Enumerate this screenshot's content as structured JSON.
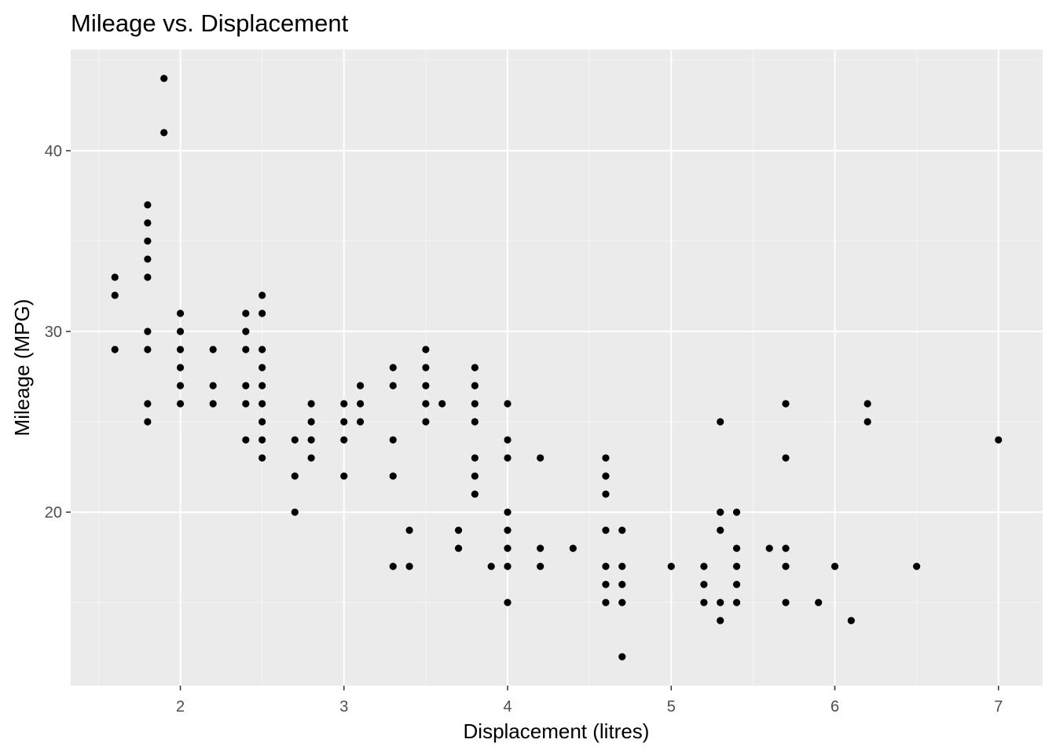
{
  "colors": {
    "panel_background": "#ebebeb",
    "grid_major": "#ffffff",
    "grid_minor": "#f5f5f5",
    "point": "#000000",
    "tick_label": "#4d4d4d",
    "tick_mark": "#333333"
  },
  "chart_data": {
    "type": "scatter",
    "title": "Mileage vs. Displacement",
    "xlabel": "Displacement (litres)",
    "ylabel": "Mileage (MPG)",
    "xlim": [
      1.33,
      7.27
    ],
    "ylim": [
      10.4,
      45.6
    ],
    "x_ticks": [
      2,
      3,
      4,
      5,
      6,
      7
    ],
    "x_tick_labels": [
      "2",
      "3",
      "4",
      "5",
      "6",
      "7"
    ],
    "y_ticks": [
      20,
      30,
      40
    ],
    "y_tick_labels": [
      "20",
      "30",
      "40"
    ],
    "x_minor_ticks": [
      1.5,
      2.5,
      3.5,
      4.5,
      5.5,
      6.5
    ],
    "y_minor_ticks": [
      15,
      25,
      35,
      45
    ],
    "grid": true,
    "legend": "none",
    "points": [
      {
        "x": 1.6,
        "y": 33
      },
      {
        "x": 1.6,
        "y": 32
      },
      {
        "x": 1.6,
        "y": 29
      },
      {
        "x": 1.8,
        "y": 37
      },
      {
        "x": 1.8,
        "y": 36
      },
      {
        "x": 1.8,
        "y": 35
      },
      {
        "x": 1.8,
        "y": 34
      },
      {
        "x": 1.8,
        "y": 33
      },
      {
        "x": 1.8,
        "y": 30
      },
      {
        "x": 1.8,
        "y": 29
      },
      {
        "x": 1.8,
        "y": 26
      },
      {
        "x": 1.8,
        "y": 25
      },
      {
        "x": 1.9,
        "y": 44
      },
      {
        "x": 1.9,
        "y": 41
      },
      {
        "x": 2.0,
        "y": 31
      },
      {
        "x": 2.0,
        "y": 30
      },
      {
        "x": 2.0,
        "y": 29
      },
      {
        "x": 2.0,
        "y": 28
      },
      {
        "x": 2.0,
        "y": 27
      },
      {
        "x": 2.0,
        "y": 26
      },
      {
        "x": 2.2,
        "y": 29
      },
      {
        "x": 2.2,
        "y": 27
      },
      {
        "x": 2.2,
        "y": 26
      },
      {
        "x": 2.4,
        "y": 31
      },
      {
        "x": 2.4,
        "y": 30
      },
      {
        "x": 2.4,
        "y": 29
      },
      {
        "x": 2.4,
        "y": 27
      },
      {
        "x": 2.4,
        "y": 26
      },
      {
        "x": 2.4,
        "y": 24
      },
      {
        "x": 2.5,
        "y": 32
      },
      {
        "x": 2.5,
        "y": 31
      },
      {
        "x": 2.5,
        "y": 29
      },
      {
        "x": 2.5,
        "y": 28
      },
      {
        "x": 2.5,
        "y": 27
      },
      {
        "x": 2.5,
        "y": 26
      },
      {
        "x": 2.5,
        "y": 25
      },
      {
        "x": 2.5,
        "y": 24
      },
      {
        "x": 2.5,
        "y": 23
      },
      {
        "x": 2.7,
        "y": 24
      },
      {
        "x": 2.7,
        "y": 22
      },
      {
        "x": 2.7,
        "y": 20
      },
      {
        "x": 2.8,
        "y": 26
      },
      {
        "x": 2.8,
        "y": 25
      },
      {
        "x": 2.8,
        "y": 24
      },
      {
        "x": 2.8,
        "y": 23
      },
      {
        "x": 3.0,
        "y": 26
      },
      {
        "x": 3.0,
        "y": 25
      },
      {
        "x": 3.0,
        "y": 24
      },
      {
        "x": 3.0,
        "y": 22
      },
      {
        "x": 3.1,
        "y": 27
      },
      {
        "x": 3.1,
        "y": 26
      },
      {
        "x": 3.1,
        "y": 25
      },
      {
        "x": 3.3,
        "y": 28
      },
      {
        "x": 3.3,
        "y": 27
      },
      {
        "x": 3.3,
        "y": 24
      },
      {
        "x": 3.3,
        "y": 22
      },
      {
        "x": 3.3,
        "y": 17
      },
      {
        "x": 3.4,
        "y": 19
      },
      {
        "x": 3.4,
        "y": 17
      },
      {
        "x": 3.5,
        "y": 29
      },
      {
        "x": 3.5,
        "y": 28
      },
      {
        "x": 3.5,
        "y": 27
      },
      {
        "x": 3.5,
        "y": 26
      },
      {
        "x": 3.5,
        "y": 25
      },
      {
        "x": 3.6,
        "y": 26
      },
      {
        "x": 3.7,
        "y": 19
      },
      {
        "x": 3.7,
        "y": 18
      },
      {
        "x": 3.8,
        "y": 28
      },
      {
        "x": 3.8,
        "y": 27
      },
      {
        "x": 3.8,
        "y": 26
      },
      {
        "x": 3.8,
        "y": 25
      },
      {
        "x": 3.8,
        "y": 23
      },
      {
        "x": 3.8,
        "y": 22
      },
      {
        "x": 3.8,
        "y": 21
      },
      {
        "x": 3.9,
        "y": 17
      },
      {
        "x": 4.0,
        "y": 26
      },
      {
        "x": 4.0,
        "y": 24
      },
      {
        "x": 4.0,
        "y": 23
      },
      {
        "x": 4.0,
        "y": 20
      },
      {
        "x": 4.0,
        "y": 19
      },
      {
        "x": 4.0,
        "y": 18
      },
      {
        "x": 4.0,
        "y": 17
      },
      {
        "x": 4.0,
        "y": 15
      },
      {
        "x": 4.2,
        "y": 23
      },
      {
        "x": 4.2,
        "y": 18
      },
      {
        "x": 4.2,
        "y": 17
      },
      {
        "x": 4.4,
        "y": 18
      },
      {
        "x": 4.6,
        "y": 23
      },
      {
        "x": 4.6,
        "y": 22
      },
      {
        "x": 4.6,
        "y": 21
      },
      {
        "x": 4.6,
        "y": 19
      },
      {
        "x": 4.6,
        "y": 17
      },
      {
        "x": 4.6,
        "y": 16
      },
      {
        "x": 4.6,
        "y": 15
      },
      {
        "x": 4.7,
        "y": 19
      },
      {
        "x": 4.7,
        "y": 17
      },
      {
        "x": 4.7,
        "y": 16
      },
      {
        "x": 4.7,
        "y": 15
      },
      {
        "x": 4.7,
        "y": 12
      },
      {
        "x": 5.0,
        "y": 17
      },
      {
        "x": 5.2,
        "y": 17
      },
      {
        "x": 5.2,
        "y": 16
      },
      {
        "x": 5.2,
        "y": 15
      },
      {
        "x": 5.3,
        "y": 25
      },
      {
        "x": 5.3,
        "y": 20
      },
      {
        "x": 5.3,
        "y": 19
      },
      {
        "x": 5.3,
        "y": 15
      },
      {
        "x": 5.3,
        "y": 14
      },
      {
        "x": 5.4,
        "y": 20
      },
      {
        "x": 5.4,
        "y": 18
      },
      {
        "x": 5.4,
        "y": 17
      },
      {
        "x": 5.4,
        "y": 16
      },
      {
        "x": 5.4,
        "y": 15
      },
      {
        "x": 5.6,
        "y": 18
      },
      {
        "x": 5.7,
        "y": 26
      },
      {
        "x": 5.7,
        "y": 23
      },
      {
        "x": 5.7,
        "y": 18
      },
      {
        "x": 5.7,
        "y": 17
      },
      {
        "x": 5.7,
        "y": 15
      },
      {
        "x": 5.9,
        "y": 15
      },
      {
        "x": 6.0,
        "y": 17
      },
      {
        "x": 6.1,
        "y": 14
      },
      {
        "x": 6.2,
        "y": 26
      },
      {
        "x": 6.2,
        "y": 25
      },
      {
        "x": 6.5,
        "y": 17
      },
      {
        "x": 7.0,
        "y": 24
      }
    ]
  }
}
